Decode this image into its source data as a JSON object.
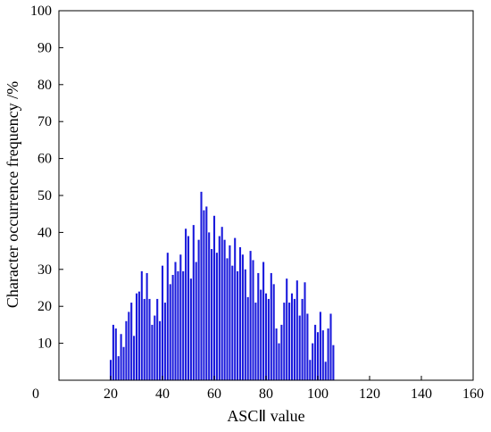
{
  "chart_data": {
    "type": "bar",
    "title": "",
    "xlabel": "ASCⅡ value",
    "ylabel": "Character occurrence frequency /%",
    "xlim": [
      0,
      160
    ],
    "ylim": [
      0,
      100
    ],
    "x_ticks": [
      0,
      20,
      40,
      60,
      80,
      100,
      120,
      140,
      160
    ],
    "y_ticks": [
      10,
      20,
      30,
      40,
      50,
      60,
      70,
      80,
      90,
      100
    ],
    "y_ticks_note": "0 on y-axis shares the origin label",
    "grid": false,
    "legend": "none",
    "bar_color": "#1a1adc",
    "x": [
      20,
      21,
      22,
      23,
      24,
      25,
      26,
      27,
      28,
      29,
      30,
      31,
      32,
      33,
      34,
      35,
      36,
      37,
      38,
      39,
      40,
      41,
      42,
      43,
      44,
      45,
      46,
      47,
      48,
      49,
      50,
      51,
      52,
      53,
      54,
      55,
      56,
      57,
      58,
      59,
      60,
      61,
      62,
      63,
      64,
      65,
      66,
      67,
      68,
      69,
      70,
      71,
      72,
      73,
      74,
      75,
      76,
      77,
      78,
      79,
      80,
      81,
      82,
      83,
      84,
      85,
      86,
      87,
      88,
      89,
      90,
      91,
      92,
      93,
      94,
      95,
      96,
      97,
      98,
      99,
      100,
      101,
      102,
      103,
      104,
      105,
      106,
      107,
      108,
      109,
      110,
      111,
      112,
      113,
      114,
      115,
      116,
      117,
      118,
      119,
      120,
      121,
      122,
      123,
      124
    ],
    "values": [
      5.5,
      15,
      14,
      6.5,
      12.5,
      9,
      16,
      18.5,
      21,
      12,
      23.5,
      24,
      29.5,
      22,
      29,
      22,
      15,
      17.5,
      22,
      16,
      31,
      21,
      34.5,
      26,
      28.5,
      32,
      29.5,
      34,
      29.5,
      41,
      39,
      27.5,
      42,
      32,
      38,
      51,
      46,
      47,
      40,
      35.5,
      44.5,
      34.5,
      39,
      41.5,
      38,
      33,
      36.5,
      31,
      38.5,
      29.5,
      36,
      34,
      30,
      22.5,
      35,
      32.5,
      21,
      29,
      24.5,
      32,
      23.5,
      22,
      29,
      26,
      14,
      10,
      15,
      21,
      27.5,
      21,
      23.5,
      22,
      27,
      17.5,
      22,
      26.5,
      18,
      5.5,
      10,
      15,
      13,
      18.5,
      13.5,
      5,
      14,
      18,
      9.5,
      0,
      0,
      0,
      0,
      0,
      0,
      0,
      0,
      0,
      0,
      0,
      0,
      0,
      0,
      0,
      0,
      0,
      0
    ]
  }
}
